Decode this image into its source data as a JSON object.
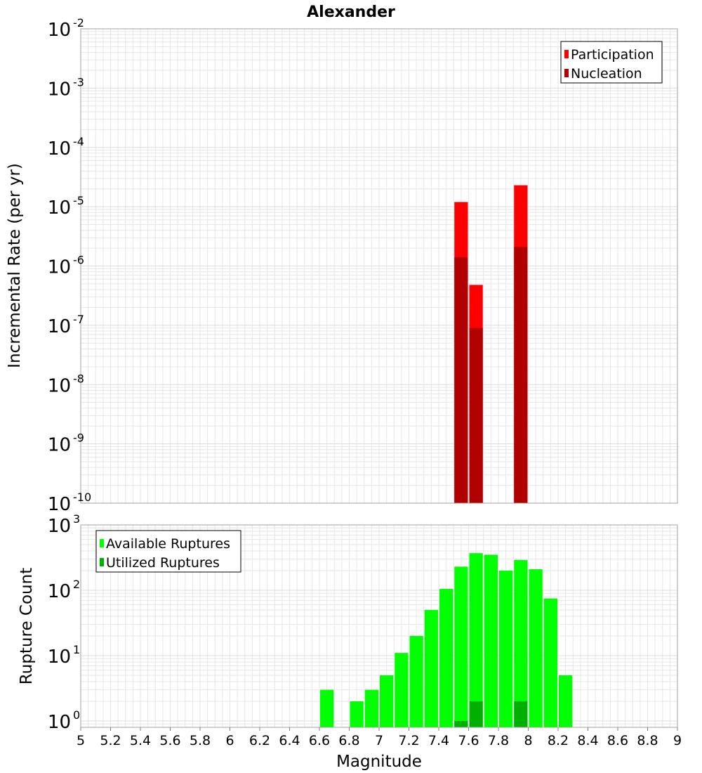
{
  "title": "Alexander",
  "xlabel": "Magnitude",
  "x_ticks": [
    "5",
    "5.2",
    "5.4",
    "5.6",
    "5.8",
    "6",
    "6.2",
    "6.4",
    "6.6",
    "6.8",
    "7",
    "7.2",
    "7.4",
    "7.6",
    "7.8",
    "8",
    "8.2",
    "8.4",
    "8.6",
    "8.8",
    "9"
  ],
  "colors": {
    "participation": "#ff0000",
    "nucleation": "#b00000",
    "available": "#00ff00",
    "utilized": "#00b000",
    "frame": "#a0a0a0",
    "grid": "#e6e6e6"
  },
  "chart_data": [
    {
      "type": "bar",
      "panel": "top",
      "ylabel": "Incremental Rate (per yr)",
      "yscale": "log",
      "ylim": [
        1e-10,
        0.01
      ],
      "xlim": [
        5,
        9
      ],
      "bin_width": 0.1,
      "y_tick_exponents": [
        "-2",
        "-3",
        "-4",
        "-5",
        "-6",
        "-7",
        "-8",
        "-9",
        "-10"
      ],
      "legend": [
        {
          "label": "Participation",
          "color": "#ff0000"
        },
        {
          "label": "Nucleation",
          "color": "#b00000"
        }
      ],
      "legend_position": "top-right",
      "series": [
        {
          "name": "Participation",
          "x": [
            7.55,
            7.65,
            7.95
          ],
          "values": [
            1.2e-05,
            4.8e-07,
            2.3e-05
          ]
        },
        {
          "name": "Nucleation",
          "x": [
            7.55,
            7.65,
            7.95
          ],
          "values": [
            1.4e-06,
            9e-08,
            2.1e-06
          ]
        }
      ]
    },
    {
      "type": "bar",
      "panel": "bottom",
      "ylabel": "Rupture Count",
      "yscale": "log",
      "ylim": [
        0.8,
        1000
      ],
      "xlim": [
        5,
        9
      ],
      "bin_width": 0.1,
      "y_tick_exponents": [
        "3",
        "2",
        "1",
        "0"
      ],
      "legend": [
        {
          "label": "Available Ruptures",
          "color": "#00ff00"
        },
        {
          "label": "Utilized Ruptures",
          "color": "#00b000"
        }
      ],
      "legend_position": "top-left",
      "series": [
        {
          "name": "Available Ruptures",
          "x": [
            6.65,
            6.85,
            6.95,
            7.05,
            7.15,
            7.25,
            7.35,
            7.45,
            7.55,
            7.65,
            7.75,
            7.85,
            7.95,
            8.05,
            8.15,
            8.25
          ],
          "values": [
            3,
            2,
            3,
            5,
            11,
            20,
            50,
            105,
            230,
            370,
            350,
            200,
            290,
            210,
            75,
            5
          ]
        },
        {
          "name": "Utilized Ruptures",
          "x": [
            7.55,
            7.65,
            7.95
          ],
          "values": [
            1,
            2,
            2
          ]
        }
      ]
    }
  ]
}
